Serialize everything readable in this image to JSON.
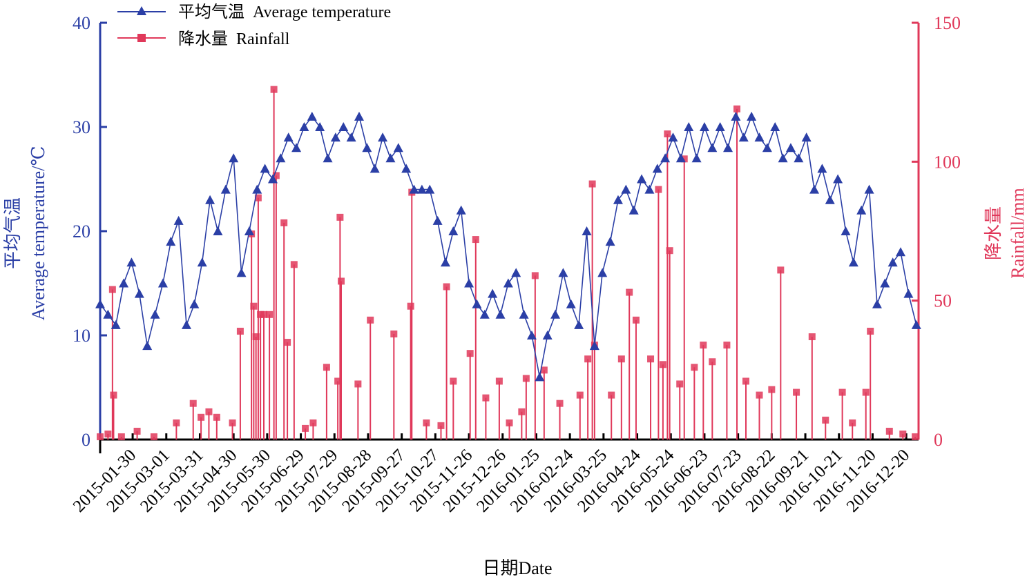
{
  "chart_data": {
    "type": "line",
    "xlabel": "日期Date",
    "ylabel_left_cn": "平均气温",
    "ylabel_left_en": "Average temperature/℃",
    "ylabel_right_cn": "降水量",
    "ylabel_right_en": "Rainfall/mm",
    "ylim_left": [
      0,
      40
    ],
    "ylim_right": [
      0,
      150
    ],
    "yticks_left": [
      "0",
      "10",
      "20",
      "30",
      "40"
    ],
    "yticks_right": [
      "0",
      "50",
      "100",
      "150"
    ],
    "x_start": "2015-01-01",
    "x_end": "2016-12-31",
    "x_tick_labels": [
      "2015-01-30",
      "2015-03-01",
      "2015-03-31",
      "2015-04-30",
      "2015-05-30",
      "2015-06-29",
      "2015-07-29",
      "2015-08-28",
      "2015-09-27",
      "2015-10-27",
      "2015-11-26",
      "2015-12-26",
      "2016-01-25",
      "2016-02-24",
      "2016-03-25",
      "2016-04-24",
      "2016-05-24",
      "2016-06-23",
      "2016-07-23",
      "2016-08-22",
      "2016-09-21",
      "2016-10-21",
      "2016-11-20",
      "2016-12-20"
    ],
    "legend_position": "top-left",
    "colors": {
      "temperature": "#2b3fa6",
      "rainfall": "#e0385a"
    },
    "series": [
      {
        "name": "平均气温  Average temperature",
        "axis": "left",
        "marker": "triangle",
        "points": [
          [
            "2015-01-01",
            13
          ],
          [
            "2015-01-08",
            12
          ],
          [
            "2015-01-15",
            11
          ],
          [
            "2015-01-22",
            15
          ],
          [
            "2015-01-29",
            17
          ],
          [
            "2015-02-05",
            14
          ],
          [
            "2015-02-12",
            9
          ],
          [
            "2015-02-19",
            12
          ],
          [
            "2015-02-26",
            15
          ],
          [
            "2015-03-05",
            19
          ],
          [
            "2015-03-12",
            21
          ],
          [
            "2015-03-19",
            11
          ],
          [
            "2015-03-26",
            13
          ],
          [
            "2015-04-02",
            17
          ],
          [
            "2015-04-09",
            23
          ],
          [
            "2015-04-16",
            20
          ],
          [
            "2015-04-23",
            24
          ],
          [
            "2015-04-30",
            27
          ],
          [
            "2015-05-07",
            16
          ],
          [
            "2015-05-14",
            20
          ],
          [
            "2015-05-21",
            24
          ],
          [
            "2015-05-28",
            26
          ],
          [
            "2015-06-04",
            25
          ],
          [
            "2015-06-11",
            27
          ],
          [
            "2015-06-18",
            29
          ],
          [
            "2015-06-25",
            28
          ],
          [
            "2015-07-02",
            30
          ],
          [
            "2015-07-09",
            31
          ],
          [
            "2015-07-16",
            30
          ],
          [
            "2015-07-23",
            27
          ],
          [
            "2015-07-30",
            29
          ],
          [
            "2015-08-06",
            30
          ],
          [
            "2015-08-13",
            29
          ],
          [
            "2015-08-20",
            31
          ],
          [
            "2015-08-27",
            28
          ],
          [
            "2015-09-03",
            26
          ],
          [
            "2015-09-10",
            29
          ],
          [
            "2015-09-17",
            27
          ],
          [
            "2015-09-24",
            28
          ],
          [
            "2015-10-01",
            26
          ],
          [
            "2015-10-08",
            24
          ],
          [
            "2015-10-15",
            24
          ],
          [
            "2015-10-22",
            24
          ],
          [
            "2015-10-29",
            21
          ],
          [
            "2015-11-05",
            17
          ],
          [
            "2015-11-12",
            20
          ],
          [
            "2015-11-19",
            22
          ],
          [
            "2015-11-26",
            15
          ],
          [
            "2015-12-03",
            13
          ],
          [
            "2015-12-10",
            12
          ],
          [
            "2015-12-17",
            14
          ],
          [
            "2015-12-24",
            12
          ],
          [
            "2015-12-31",
            15
          ],
          [
            "2016-01-07",
            16
          ],
          [
            "2016-01-14",
            12
          ],
          [
            "2016-01-21",
            10
          ],
          [
            "2016-01-28",
            6
          ],
          [
            "2016-02-04",
            10
          ],
          [
            "2016-02-11",
            12
          ],
          [
            "2016-02-18",
            16
          ],
          [
            "2016-02-25",
            13
          ],
          [
            "2016-03-03",
            11
          ],
          [
            "2016-03-10",
            20
          ],
          [
            "2016-03-17",
            9
          ],
          [
            "2016-03-24",
            16
          ],
          [
            "2016-03-31",
            19
          ],
          [
            "2016-04-07",
            23
          ],
          [
            "2016-04-14",
            24
          ],
          [
            "2016-04-21",
            22
          ],
          [
            "2016-04-28",
            25
          ],
          [
            "2016-05-05",
            24
          ],
          [
            "2016-05-12",
            26
          ],
          [
            "2016-05-19",
            27
          ],
          [
            "2016-05-26",
            29
          ],
          [
            "2016-06-02",
            27
          ],
          [
            "2016-06-09",
            30
          ],
          [
            "2016-06-16",
            27
          ],
          [
            "2016-06-23",
            30
          ],
          [
            "2016-06-30",
            28
          ],
          [
            "2016-07-07",
            30
          ],
          [
            "2016-07-14",
            28
          ],
          [
            "2016-07-21",
            31
          ],
          [
            "2016-07-28",
            29
          ],
          [
            "2016-08-04",
            31
          ],
          [
            "2016-08-11",
            29
          ],
          [
            "2016-08-18",
            28
          ],
          [
            "2016-08-25",
            30
          ],
          [
            "2016-09-01",
            27
          ],
          [
            "2016-09-08",
            28
          ],
          [
            "2016-09-15",
            27
          ],
          [
            "2016-09-22",
            29
          ],
          [
            "2016-09-29",
            24
          ],
          [
            "2016-10-06",
            26
          ],
          [
            "2016-10-13",
            23
          ],
          [
            "2016-10-20",
            25
          ],
          [
            "2016-10-27",
            20
          ],
          [
            "2016-11-03",
            17
          ],
          [
            "2016-11-10",
            22
          ],
          [
            "2016-11-17",
            24
          ],
          [
            "2016-11-24",
            13
          ],
          [
            "2016-12-01",
            15
          ],
          [
            "2016-12-08",
            17
          ],
          [
            "2016-12-15",
            18
          ],
          [
            "2016-12-22",
            14
          ],
          [
            "2016-12-29",
            11
          ]
        ]
      },
      {
        "name": "降水量  Rainfall",
        "axis": "right",
        "marker": "square",
        "points": [
          [
            "2015-01-01",
            1
          ],
          [
            "2015-01-08",
            2
          ],
          [
            "2015-01-12",
            54
          ],
          [
            "2015-01-13",
            16
          ],
          [
            "2015-01-20",
            1
          ],
          [
            "2015-02-03",
            3
          ],
          [
            "2015-02-18",
            1
          ],
          [
            "2015-03-10",
            6
          ],
          [
            "2015-03-25",
            13
          ],
          [
            "2015-04-01",
            8
          ],
          [
            "2015-04-08",
            10
          ],
          [
            "2015-04-15",
            8
          ],
          [
            "2015-04-29",
            6
          ],
          [
            "2015-05-06",
            39
          ],
          [
            "2015-05-16",
            74
          ],
          [
            "2015-05-18",
            48
          ],
          [
            "2015-05-20",
            37
          ],
          [
            "2015-05-22",
            87
          ],
          [
            "2015-05-24",
            45
          ],
          [
            "2015-05-27",
            45
          ],
          [
            "2015-06-01",
            45
          ],
          [
            "2015-06-05",
            126
          ],
          [
            "2015-06-07",
            95
          ],
          [
            "2015-06-14",
            78
          ],
          [
            "2015-06-17",
            35
          ],
          [
            "2015-06-23",
            63
          ],
          [
            "2015-07-03",
            4
          ],
          [
            "2015-07-10",
            6
          ],
          [
            "2015-07-22",
            26
          ],
          [
            "2015-08-01",
            21
          ],
          [
            "2015-08-03",
            80
          ],
          [
            "2015-08-04",
            57
          ],
          [
            "2015-08-19",
            20
          ],
          [
            "2015-08-30",
            43
          ],
          [
            "2015-09-20",
            38
          ],
          [
            "2015-10-05",
            48
          ],
          [
            "2015-10-06",
            89
          ],
          [
            "2015-10-19",
            6
          ],
          [
            "2015-11-01",
            5
          ],
          [
            "2015-11-06",
            55
          ],
          [
            "2015-11-12",
            21
          ],
          [
            "2015-11-27",
            31
          ],
          [
            "2015-12-02",
            72
          ],
          [
            "2015-12-11",
            15
          ],
          [
            "2015-12-23",
            21
          ],
          [
            "2016-01-01",
            6
          ],
          [
            "2016-01-12",
            10
          ],
          [
            "2016-01-16",
            22
          ],
          [
            "2016-01-24",
            59
          ],
          [
            "2016-02-01",
            25
          ],
          [
            "2016-02-15",
            13
          ],
          [
            "2016-03-04",
            16
          ],
          [
            "2016-03-11",
            29
          ],
          [
            "2016-03-15",
            92
          ],
          [
            "2016-03-17",
            34
          ],
          [
            "2016-04-01",
            16
          ],
          [
            "2016-04-10",
            29
          ],
          [
            "2016-04-17",
            53
          ],
          [
            "2016-04-23",
            43
          ],
          [
            "2016-05-06",
            29
          ],
          [
            "2016-05-13",
            90
          ],
          [
            "2016-05-17",
            27
          ],
          [
            "2016-05-21",
            110
          ],
          [
            "2016-05-23",
            68
          ],
          [
            "2016-06-01",
            20
          ],
          [
            "2016-06-05",
            101
          ],
          [
            "2016-06-14",
            26
          ],
          [
            "2016-06-22",
            34
          ],
          [
            "2016-06-30",
            28
          ],
          [
            "2016-07-13",
            34
          ],
          [
            "2016-07-22",
            119
          ],
          [
            "2016-07-30",
            21
          ],
          [
            "2016-08-11",
            16
          ],
          [
            "2016-08-22",
            18
          ],
          [
            "2016-08-30",
            61
          ],
          [
            "2016-09-13",
            17
          ],
          [
            "2016-09-27",
            37
          ],
          [
            "2016-10-09",
            7
          ],
          [
            "2016-10-24",
            17
          ],
          [
            "2016-11-02",
            6
          ],
          [
            "2016-11-14",
            17
          ],
          [
            "2016-11-18",
            39
          ],
          [
            "2016-12-05",
            3
          ],
          [
            "2016-12-17",
            2
          ],
          [
            "2016-12-28",
            1
          ]
        ]
      }
    ]
  }
}
